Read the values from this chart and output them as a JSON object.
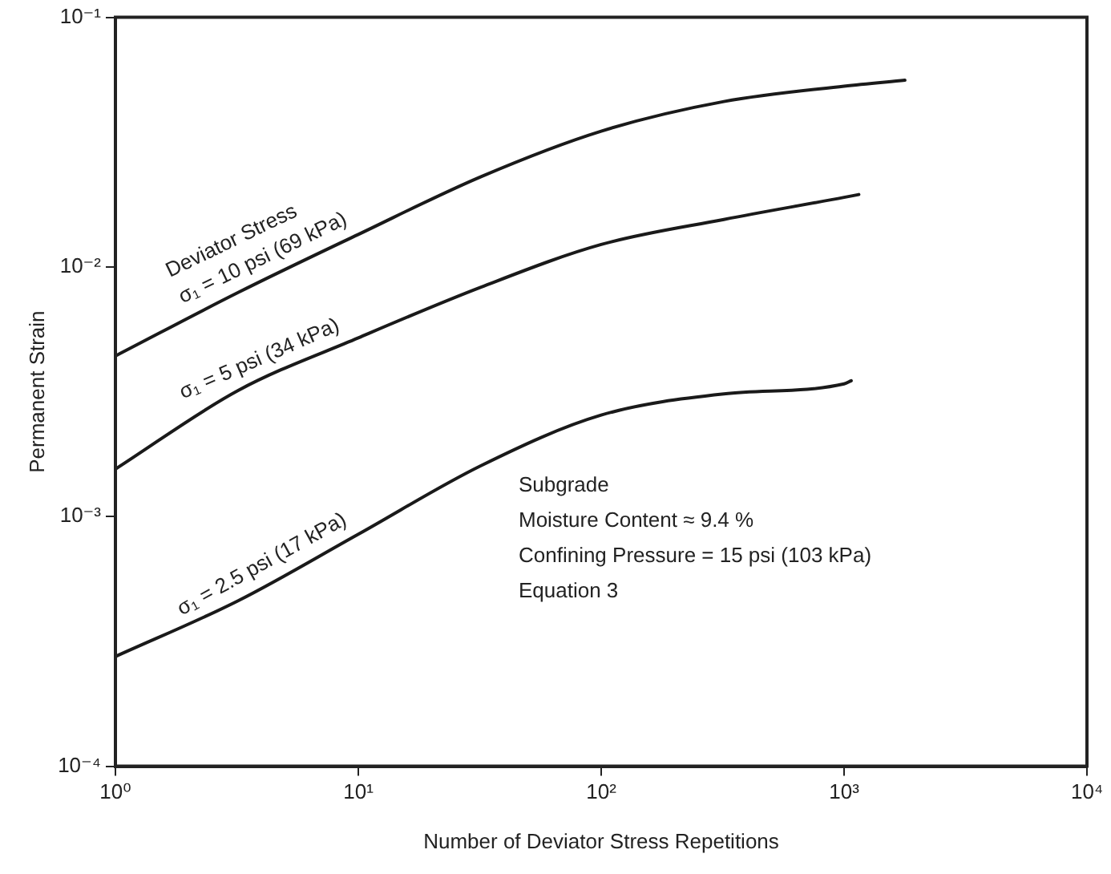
{
  "chart_data": {
    "type": "line",
    "xlabel": "Number of Deviator Stress Repetitions",
    "ylabel": "Permanent Strain",
    "log": "xy",
    "xlim": [
      1,
      10000
    ],
    "xticks": [
      {
        "value": 1,
        "label": "10⁰"
      },
      {
        "value": 10,
        "label": "10¹"
      },
      {
        "value": 100,
        "label": "10²"
      },
      {
        "value": 1000,
        "label": "10³"
      },
      {
        "value": 10000,
        "label": "10⁴"
      }
    ],
    "ylim": [
      0.0001,
      0.1
    ],
    "yticks": [
      {
        "value": 0.0001,
        "label": "10⁻⁴"
      },
      {
        "value": 0.001,
        "label": "10⁻³"
      },
      {
        "value": 0.01,
        "label": "10⁻²"
      },
      {
        "value": 0.1,
        "label": "10⁻¹"
      }
    ],
    "grid": false,
    "legend": false,
    "marker": "none",
    "line_style": "solid",
    "series": [
      {
        "name": "σ₁ = 10 psi (69 kPa)",
        "color": "#1a1a1a",
        "x": [
          1,
          3.2,
          10,
          32,
          100,
          320,
          1000,
          1780
        ],
        "values": [
          0.0044,
          0.0079,
          0.0135,
          0.023,
          0.035,
          0.046,
          0.053,
          0.056
        ]
      },
      {
        "name": "σ₁ = 5 psi (34 kPa)",
        "color": "#1a1a1a",
        "x": [
          1,
          3.2,
          10,
          32,
          100,
          320,
          1000,
          1150
        ],
        "values": [
          0.00155,
          0.0032,
          0.0052,
          0.0083,
          0.0123,
          0.0155,
          0.019,
          0.0195
        ]
      },
      {
        "name": "σ₁ = 2.5 psi (17 kPa)",
        "color": "#1a1a1a",
        "x": [
          1,
          3.2,
          10,
          32,
          100,
          320,
          1000,
          1070
        ],
        "values": [
          0.000275,
          0.00046,
          0.00085,
          0.0016,
          0.00255,
          0.0031,
          0.0034,
          0.0035
        ]
      }
    ],
    "annotations": [
      "Deviator Stress",
      "Subgrade",
      "Moisture Content ≈ 9.4 %",
      "Confining Pressure = 15 psi (103 kPa)",
      "Equation 3"
    ]
  }
}
